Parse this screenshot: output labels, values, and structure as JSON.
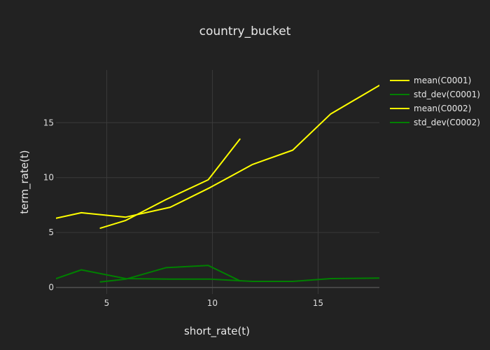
{
  "chart_data": {
    "type": "line",
    "title": "country_bucket",
    "xlabel": "short_rate(t)",
    "ylabel": "term_rate(t)",
    "xlim": [
      2.6,
      17.9
    ],
    "ylim": [
      -0.6,
      19.8
    ],
    "xticks": [
      5,
      10,
      15
    ],
    "yticks": [
      0,
      5,
      10,
      15
    ],
    "grid": true,
    "legend_position": "top-right",
    "series": [
      {
        "name": "mean(C0001)",
        "color": "#ffff00",
        "x": [
          2.6,
          3.8,
          5.9,
          8.0,
          9.9,
          11.9,
          13.8,
          15.6,
          17.9
        ],
        "y": [
          6.3,
          6.8,
          6.4,
          7.3,
          9.1,
          11.2,
          12.5,
          15.8,
          18.4
        ]
      },
      {
        "name": "std_dev(C0001)",
        "color": "#008000",
        "x": [
          2.6,
          3.8,
          5.9,
          8.0,
          9.9,
          11.9,
          13.8,
          15.6,
          17.9
        ],
        "y": [
          0.8,
          1.6,
          0.8,
          0.75,
          0.75,
          0.55,
          0.55,
          0.8,
          0.85
        ]
      },
      {
        "name": "mean(C0002)",
        "color": "#ffff00",
        "x": [
          4.7,
          5.9,
          7.8,
          9.8,
          11.3
        ],
        "y": [
          5.4,
          6.1,
          8.0,
          9.8,
          13.5
        ]
      },
      {
        "name": "std_dev(C0002)",
        "color": "#008000",
        "x": [
          4.7,
          5.9,
          7.8,
          9.8,
          11.3
        ],
        "y": [
          0.5,
          0.75,
          1.8,
          2.0,
          0.6
        ]
      }
    ]
  }
}
